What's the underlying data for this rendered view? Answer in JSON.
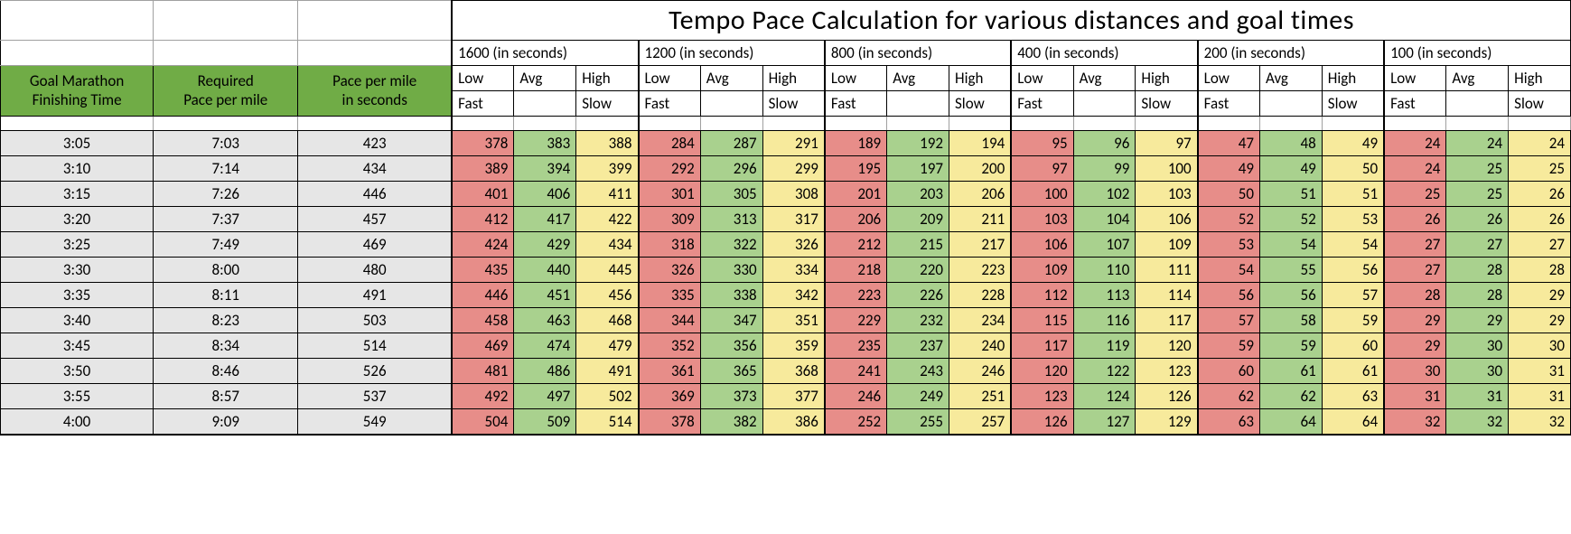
{
  "title": "Tempo Pace Calculation for various distances and goal times",
  "colors": {
    "green_header": "#70ac46",
    "goal_bg": "#e6e6e6",
    "low_bg": "#e78d89",
    "avg_bg": "#a9d18e",
    "high_bg": "#f7ea9c",
    "border": "#000000",
    "light_border": "#a0a0a0"
  },
  "goal_headers": {
    "line1": [
      "Goal Marathon",
      "Required",
      "Pace per mile"
    ],
    "line2": [
      "Finishing Time",
      "Pace per mile",
      "in seconds"
    ]
  },
  "distances": [
    "1600 (in seconds)",
    "1200 (in seconds)",
    "800 (in seconds)",
    "400 (in seconds)",
    "200 (in seconds)",
    "100 (in seconds)"
  ],
  "sub_cols": {
    "line1": [
      "Low",
      "Avg",
      "High"
    ],
    "line2": [
      "Fast",
      "",
      "Slow"
    ]
  },
  "rows": [
    {
      "goal": "3:05",
      "pace": "7:03",
      "sec": "423",
      "d": [
        [
          "378",
          "383",
          "388"
        ],
        [
          "284",
          "287",
          "291"
        ],
        [
          "189",
          "192",
          "194"
        ],
        [
          "95",
          "96",
          "97"
        ],
        [
          "47",
          "48",
          "49"
        ],
        [
          "24",
          "24",
          "24"
        ]
      ]
    },
    {
      "goal": "3:10",
      "pace": "7:14",
      "sec": "434",
      "d": [
        [
          "389",
          "394",
          "399"
        ],
        [
          "292",
          "296",
          "299"
        ],
        [
          "195",
          "197",
          "200"
        ],
        [
          "97",
          "99",
          "100"
        ],
        [
          "49",
          "49",
          "50"
        ],
        [
          "24",
          "25",
          "25"
        ]
      ]
    },
    {
      "goal": "3:15",
      "pace": "7:26",
      "sec": "446",
      "d": [
        [
          "401",
          "406",
          "411"
        ],
        [
          "301",
          "305",
          "308"
        ],
        [
          "201",
          "203",
          "206"
        ],
        [
          "100",
          "102",
          "103"
        ],
        [
          "50",
          "51",
          "51"
        ],
        [
          "25",
          "25",
          "26"
        ]
      ]
    },
    {
      "goal": "3:20",
      "pace": "7:37",
      "sec": "457",
      "d": [
        [
          "412",
          "417",
          "422"
        ],
        [
          "309",
          "313",
          "317"
        ],
        [
          "206",
          "209",
          "211"
        ],
        [
          "103",
          "104",
          "106"
        ],
        [
          "52",
          "52",
          "53"
        ],
        [
          "26",
          "26",
          "26"
        ]
      ]
    },
    {
      "goal": "3:25",
      "pace": "7:49",
      "sec": "469",
      "d": [
        [
          "424",
          "429",
          "434"
        ],
        [
          "318",
          "322",
          "326"
        ],
        [
          "212",
          "215",
          "217"
        ],
        [
          "106",
          "107",
          "109"
        ],
        [
          "53",
          "54",
          "54"
        ],
        [
          "27",
          "27",
          "27"
        ]
      ]
    },
    {
      "goal": "3:30",
      "pace": "8:00",
      "sec": "480",
      "d": [
        [
          "435",
          "440",
          "445"
        ],
        [
          "326",
          "330",
          "334"
        ],
        [
          "218",
          "220",
          "223"
        ],
        [
          "109",
          "110",
          "111"
        ],
        [
          "54",
          "55",
          "56"
        ],
        [
          "27",
          "28",
          "28"
        ]
      ]
    },
    {
      "goal": "3:35",
      "pace": "8:11",
      "sec": "491",
      "d": [
        [
          "446",
          "451",
          "456"
        ],
        [
          "335",
          "338",
          "342"
        ],
        [
          "223",
          "226",
          "228"
        ],
        [
          "112",
          "113",
          "114"
        ],
        [
          "56",
          "56",
          "57"
        ],
        [
          "28",
          "28",
          "29"
        ]
      ]
    },
    {
      "goal": "3:40",
      "pace": "8:23",
      "sec": "503",
      "d": [
        [
          "458",
          "463",
          "468"
        ],
        [
          "344",
          "347",
          "351"
        ],
        [
          "229",
          "232",
          "234"
        ],
        [
          "115",
          "116",
          "117"
        ],
        [
          "57",
          "58",
          "59"
        ],
        [
          "29",
          "29",
          "29"
        ]
      ]
    },
    {
      "goal": "3:45",
      "pace": "8:34",
      "sec": "514",
      "d": [
        [
          "469",
          "474",
          "479"
        ],
        [
          "352",
          "356",
          "359"
        ],
        [
          "235",
          "237",
          "240"
        ],
        [
          "117",
          "119",
          "120"
        ],
        [
          "59",
          "59",
          "60"
        ],
        [
          "29",
          "30",
          "30"
        ]
      ]
    },
    {
      "goal": "3:50",
      "pace": "8:46",
      "sec": "526",
      "d": [
        [
          "481",
          "486",
          "491"
        ],
        [
          "361",
          "365",
          "368"
        ],
        [
          "241",
          "243",
          "246"
        ],
        [
          "120",
          "122",
          "123"
        ],
        [
          "60",
          "61",
          "61"
        ],
        [
          "30",
          "30",
          "31"
        ]
      ]
    },
    {
      "goal": "3:55",
      "pace": "8:57",
      "sec": "537",
      "d": [
        [
          "492",
          "497",
          "502"
        ],
        [
          "369",
          "373",
          "377"
        ],
        [
          "246",
          "249",
          "251"
        ],
        [
          "123",
          "124",
          "126"
        ],
        [
          "62",
          "62",
          "63"
        ],
        [
          "31",
          "31",
          "31"
        ]
      ]
    },
    {
      "goal": "4:00",
      "pace": "9:09",
      "sec": "549",
      "d": [
        [
          "504",
          "509",
          "514"
        ],
        [
          "378",
          "382",
          "386"
        ],
        [
          "252",
          "255",
          "257"
        ],
        [
          "126",
          "127",
          "129"
        ],
        [
          "63",
          "64",
          "64"
        ],
        [
          "32",
          "32",
          "32"
        ]
      ]
    }
  ]
}
